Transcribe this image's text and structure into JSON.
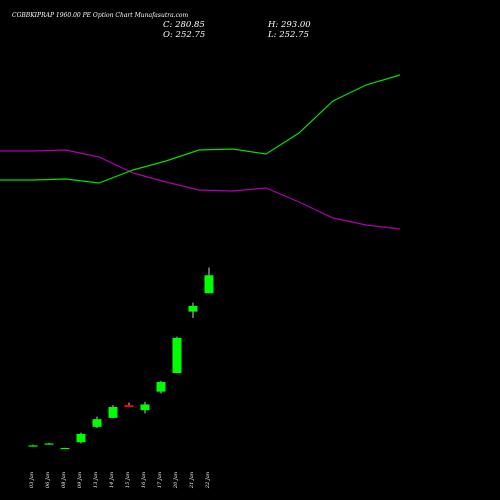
{
  "header": {
    "title": "CGBBKIPRAP 1960.00 PE Option Chart Munafasutra.com",
    "close": "C: 280.85",
    "open": "O: 252.75",
    "high": "H: 293.00",
    "low": "L: 252.75"
  },
  "colors": {
    "background": "#000000",
    "up": "#00ff00",
    "down": "#ff0000",
    "line_green": "#00e000",
    "line_magenta": "#b000b0"
  },
  "chart_data": {
    "type": "candlestick",
    "categories": [
      "03 Jan",
      "06 Jan",
      "08 Jan",
      "09 Jan",
      "13 Jan",
      "14 Jan",
      "15 Jan",
      "16 Jan",
      "17 Jan",
      "20 Jan",
      "21 Jan",
      "22 Jan"
    ],
    "candles": [
      {
        "open": 15.0,
        "high": 16.0,
        "low": 14.0,
        "close": 15.0
      },
      {
        "open": 18.0,
        "high": 19.0,
        "low": 17.0,
        "close": 18.0
      },
      {
        "open": 11.0,
        "high": 11.0,
        "low": 10.0,
        "close": 11.0
      },
      {
        "open": 20.0,
        "high": 35.0,
        "low": 18.0,
        "close": 33.0
      },
      {
        "open": 44.0,
        "high": 60.0,
        "low": 42.0,
        "close": 56.0
      },
      {
        "open": 58.0,
        "high": 78.0,
        "low": 58.0,
        "close": 75.0
      },
      {
        "open": 78.0,
        "high": 82.0,
        "low": 75.0,
        "close": 75.0
      },
      {
        "open": 70.0,
        "high": 83.0,
        "low": 65.0,
        "close": 79.0
      },
      {
        "open": 99.0,
        "high": 116.0,
        "low": 96.0,
        "close": 114.0
      },
      {
        "open": 128.0,
        "high": 185.0,
        "low": 128.0,
        "close": 183.0
      },
      {
        "open": 224.0,
        "high": 238.0,
        "low": 214.0,
        "close": 233.0
      },
      {
        "open": 252.75,
        "high": 293.0,
        "low": 252.75,
        "close": 280.85
      }
    ]
  }
}
